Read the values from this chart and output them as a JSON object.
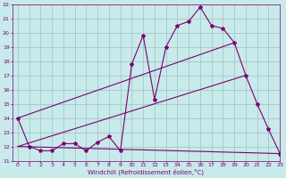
{
  "xlabel": "Windchill (Refroidissement éolien,°C)",
  "background_color": "#c8eaea",
  "grid_color": "#aacccc",
  "line_color": "#7b0070",
  "xlim": [
    -0.5,
    23
  ],
  "ylim": [
    11,
    22
  ],
  "yticks": [
    11,
    12,
    13,
    14,
    15,
    16,
    17,
    18,
    19,
    20,
    21,
    22
  ],
  "xticks": [
    0,
    1,
    2,
    3,
    4,
    5,
    6,
    7,
    8,
    9,
    10,
    11,
    12,
    13,
    14,
    15,
    16,
    17,
    18,
    19,
    20,
    21,
    22,
    23
  ],
  "series1_x": [
    0,
    1,
    2,
    3,
    4,
    5,
    6,
    7,
    8,
    9,
    10,
    11,
    12,
    13,
    14,
    15,
    16,
    17,
    18,
    19,
    20,
    21,
    22,
    23
  ],
  "series1_y": [
    14.0,
    12.0,
    11.7,
    11.7,
    12.2,
    12.2,
    11.7,
    12.3,
    12.7,
    11.7,
    17.8,
    19.8,
    15.3,
    19.0,
    20.5,
    20.8,
    21.8,
    20.5,
    20.3,
    19.3,
    17.0,
    15.0,
    13.2,
    11.5
  ],
  "series2_x": [
    0,
    20
  ],
  "series2_y": [
    12.0,
    17.0
  ],
  "series3_x": [
    0,
    23
  ],
  "series3_y": [
    12.0,
    11.5
  ],
  "series4_x": [
    0,
    19
  ],
  "series4_y": [
    14.0,
    19.3
  ]
}
